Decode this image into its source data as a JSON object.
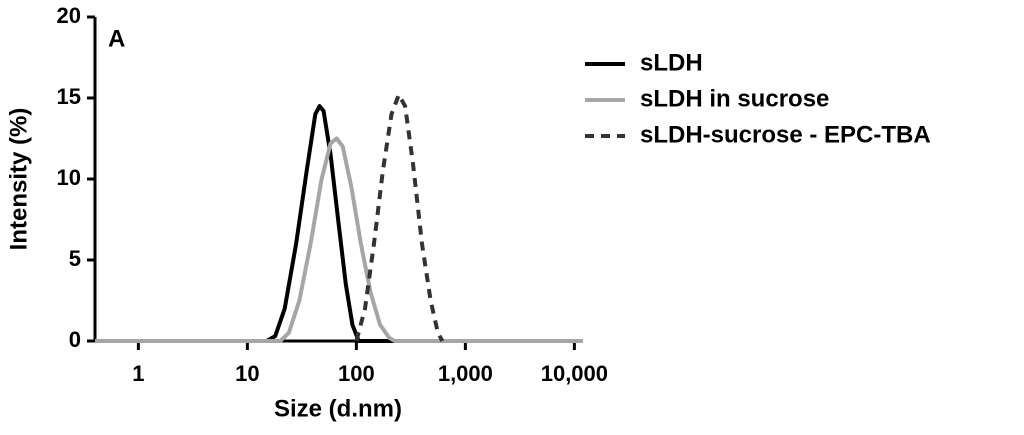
{
  "chart_data": {
    "type": "line",
    "annotation": "A",
    "x_label": "Size (d.nm)",
    "y_label": "Intensity (%)",
    "x_scale": "log",
    "xlim": [
      0.4,
      12000
    ],
    "ylim": [
      0,
      20
    ],
    "xticks": [
      1,
      10,
      100,
      {
        "value": 1000,
        "label": "1,000"
      },
      {
        "value": 10000,
        "label": "10,000"
      }
    ],
    "yticks": [
      0,
      5,
      10,
      15,
      20
    ],
    "series": [
      {
        "name": "sLDH",
        "color": "#000000",
        "dash": "solid",
        "x": [
          0.4,
          15,
          18,
          22,
          28,
          35,
          42,
          46,
          50,
          58,
          68,
          80,
          92,
          105,
          12000
        ],
        "values": [
          0,
          0,
          0.3,
          2,
          6,
          10.5,
          14,
          14.5,
          14.2,
          11.5,
          7.5,
          3.5,
          1,
          0,
          0
        ]
      },
      {
        "name": "sLDH in sucrose",
        "color": "#a6a6a6",
        "dash": "solid",
        "x": [
          0.4,
          20,
          24,
          30,
          38,
          48,
          58,
          66,
          75,
          90,
          110,
          135,
          165,
          200,
          225,
          12000
        ],
        "values": [
          0,
          0,
          0.5,
          2.5,
          6,
          10,
          12.2,
          12.5,
          12,
          9.5,
          6,
          3,
          1,
          0.2,
          0,
          0
        ]
      },
      {
        "name": "sLDH-sucrose - EPC-TBA",
        "color": "#333333",
        "dash": "dashed",
        "x": [
          100,
          120,
          145,
          175,
          210,
          245,
          280,
          330,
          400,
          480,
          560,
          615
        ],
        "values": [
          0,
          2,
          6,
          10.5,
          14,
          15.2,
          14.5,
          11,
          6,
          2.5,
          0.5,
          0
        ]
      }
    ]
  }
}
